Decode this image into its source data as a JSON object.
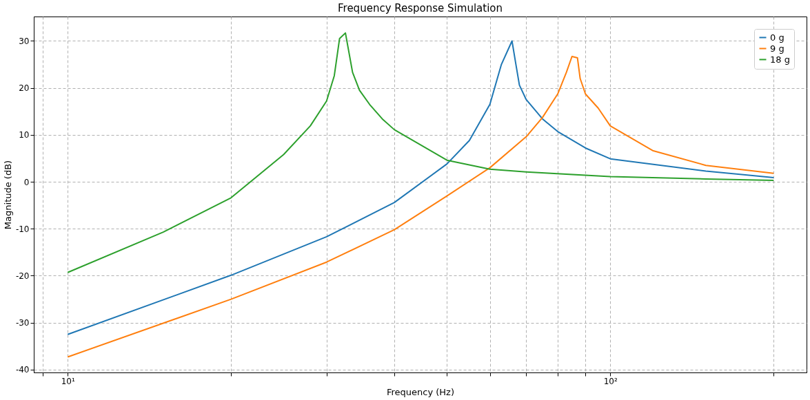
{
  "chart_data": {
    "type": "line",
    "title": "Frequency Response Simulation",
    "xlabel": "Frequency (Hz)",
    "ylabel": "Magnitude (dB)",
    "log": "x",
    "xlim": [
      8.66,
      230
    ],
    "ylim": [
      -40.6,
      35.2
    ],
    "xticks": [
      {
        "value": 9,
        "label": null
      },
      {
        "value": 10,
        "label": "10¹"
      },
      {
        "value": 20,
        "label": null
      },
      {
        "value": 30,
        "label": null
      },
      {
        "value": 40,
        "label": null
      },
      {
        "value": 50,
        "label": null
      },
      {
        "value": 60,
        "label": null
      },
      {
        "value": 70,
        "label": null
      },
      {
        "value": 80,
        "label": null
      },
      {
        "value": 90,
        "label": null
      },
      {
        "value": 100,
        "label": "10²"
      },
      {
        "value": 200,
        "label": null
      }
    ],
    "yticks": [
      -40,
      -30,
      -20,
      -10,
      0,
      10,
      20,
      30
    ],
    "grid": true,
    "legend": "top right",
    "marker": "none",
    "line_style": "solid",
    "series": [
      {
        "name": "0 g",
        "color": "#1f77b4",
        "x": [
          10,
          20,
          30,
          40,
          50,
          55,
          60,
          63,
          65.9,
          67,
          68,
          70,
          75,
          80,
          90,
          100,
          150,
          200
        ],
        "values": [
          -32.5,
          -19.9,
          -11.7,
          -4.4,
          3.8,
          8.8,
          16.5,
          25,
          30,
          25,
          20.6,
          17.5,
          13.4,
          10.7,
          7.2,
          4.9,
          2.3,
          0.9
        ]
      },
      {
        "name": "9 g",
        "color": "#ff7f0e",
        "x": [
          10,
          20,
          30,
          40,
          50,
          60,
          70,
          75,
          80,
          83,
          85,
          87,
          88,
          90,
          95,
          100,
          120,
          150,
          200
        ],
        "values": [
          -37.3,
          -25,
          -17.1,
          -10.2,
          -3,
          3,
          9.6,
          13.7,
          18.7,
          23.3,
          26.7,
          26.4,
          22,
          18.7,
          15.7,
          11.9,
          6.6,
          3.5,
          1.8
        ]
      },
      {
        "name": "18 g",
        "color": "#2ca02c",
        "x": [
          10,
          15,
          20,
          25,
          28,
          30,
          31,
          31.7,
          32.5,
          33.5,
          34.5,
          36,
          38,
          40,
          50,
          60,
          70,
          100,
          150,
          200
        ],
        "values": [
          -19.3,
          -10.7,
          -3.4,
          5.8,
          11.9,
          17.2,
          22.6,
          30.5,
          31.7,
          23.3,
          19.5,
          16.5,
          13.4,
          11.1,
          4.6,
          2.7,
          2.1,
          1.1,
          0.6,
          0.3
        ]
      }
    ]
  }
}
